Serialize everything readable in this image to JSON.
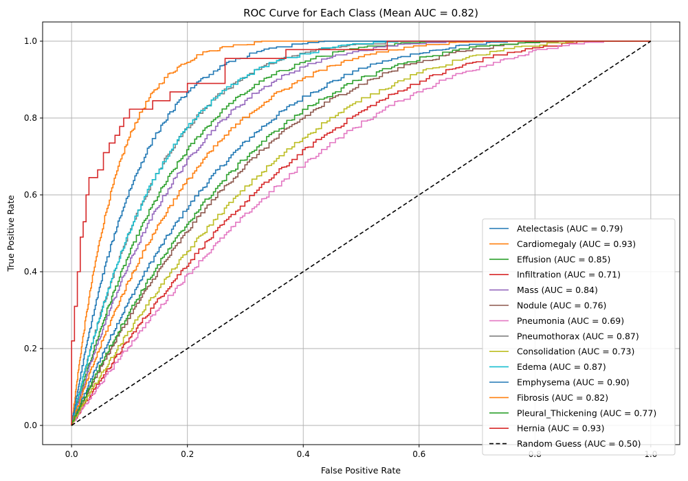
{
  "chart_data": {
    "type": "line",
    "title": "ROC Curve for Each Class (Mean AUC = 0.82)",
    "xlabel": "False Positive Rate",
    "ylabel": "True Positive Rate",
    "xlim": [
      -0.05,
      1.05
    ],
    "ylim": [
      -0.05,
      1.05
    ],
    "xticks": [
      "0.0",
      "0.2",
      "0.4",
      "0.6",
      "0.8",
      "1.0"
    ],
    "yticks": [
      "0.0",
      "0.2",
      "0.4",
      "0.6",
      "0.8",
      "1.0"
    ],
    "grid": true,
    "legend_position": "lower-right",
    "series": [
      {
        "name": "Atelectasis (AUC = 0.79)",
        "color": "#1f77b4",
        "auc": 0.79,
        "style": "solid"
      },
      {
        "name": "Cardiomegaly (AUC = 0.93)",
        "color": "#ff7f0e",
        "auc": 0.93,
        "style": "solid"
      },
      {
        "name": "Effusion (AUC = 0.85)",
        "color": "#2ca02c",
        "auc": 0.85,
        "style": "solid"
      },
      {
        "name": "Infiltration (AUC = 0.71)",
        "color": "#d62728",
        "auc": 0.71,
        "style": "solid"
      },
      {
        "name": "Mass (AUC = 0.84)",
        "color": "#9467bd",
        "auc": 0.84,
        "style": "solid"
      },
      {
        "name": "Nodule (AUC = 0.76)",
        "color": "#8c564b",
        "auc": 0.76,
        "style": "solid"
      },
      {
        "name": "Pneumonia (AUC = 0.69)",
        "color": "#e377c2",
        "auc": 0.69,
        "style": "solid"
      },
      {
        "name": "Pneumothorax (AUC = 0.87)",
        "color": "#7f7f7f",
        "auc": 0.87,
        "style": "solid"
      },
      {
        "name": "Consolidation (AUC = 0.73)",
        "color": "#bcbd22",
        "auc": 0.73,
        "style": "solid"
      },
      {
        "name": "Edema (AUC = 0.87)",
        "color": "#17becf",
        "auc": 0.87,
        "style": "solid"
      },
      {
        "name": "Emphysema (AUC = 0.90)",
        "color": "#1f77b4",
        "auc": 0.9,
        "style": "solid"
      },
      {
        "name": "Fibrosis (AUC = 0.82)",
        "color": "#ff7f0e",
        "auc": 0.82,
        "style": "solid"
      },
      {
        "name": "Pleural_Thickening (AUC = 0.77)",
        "color": "#2ca02c",
        "auc": 0.77,
        "style": "solid"
      },
      {
        "name": "Hernia (AUC = 0.93)",
        "color": "#d62728",
        "auc": 0.93,
        "style": "step",
        "points": [
          [
            0,
            0
          ],
          [
            0,
            0.22
          ],
          [
            0.005,
            0.22
          ],
          [
            0.005,
            0.31
          ],
          [
            0.01,
            0.31
          ],
          [
            0.01,
            0.4
          ],
          [
            0.015,
            0.4
          ],
          [
            0.015,
            0.49
          ],
          [
            0.02,
            0.49
          ],
          [
            0.02,
            0.53
          ],
          [
            0.025,
            0.53
          ],
          [
            0.025,
            0.6
          ],
          [
            0.03,
            0.6
          ],
          [
            0.03,
            0.645
          ],
          [
            0.045,
            0.645
          ],
          [
            0.045,
            0.665
          ],
          [
            0.055,
            0.665
          ],
          [
            0.055,
            0.71
          ],
          [
            0.065,
            0.71
          ],
          [
            0.065,
            0.735
          ],
          [
            0.075,
            0.735
          ],
          [
            0.075,
            0.755
          ],
          [
            0.083,
            0.755
          ],
          [
            0.083,
            0.778
          ],
          [
            0.09,
            0.778
          ],
          [
            0.09,
            0.8
          ],
          [
            0.1,
            0.8
          ],
          [
            0.1,
            0.823
          ],
          [
            0.14,
            0.823
          ],
          [
            0.14,
            0.845
          ],
          [
            0.17,
            0.845
          ],
          [
            0.17,
            0.868
          ],
          [
            0.2,
            0.868
          ],
          [
            0.2,
            0.89
          ],
          [
            0.265,
            0.89
          ],
          [
            0.265,
            0.955
          ],
          [
            0.37,
            0.955
          ],
          [
            0.37,
            0.978
          ],
          [
            0.545,
            0.978
          ],
          [
            0.545,
            1.0
          ],
          [
            1.0,
            1.0
          ]
        ]
      },
      {
        "name": "Random Guess (AUC = 0.50)",
        "color": "#000000",
        "auc": 0.5,
        "style": "dashed",
        "points": [
          [
            0,
            0
          ],
          [
            1,
            1
          ]
        ]
      }
    ]
  }
}
